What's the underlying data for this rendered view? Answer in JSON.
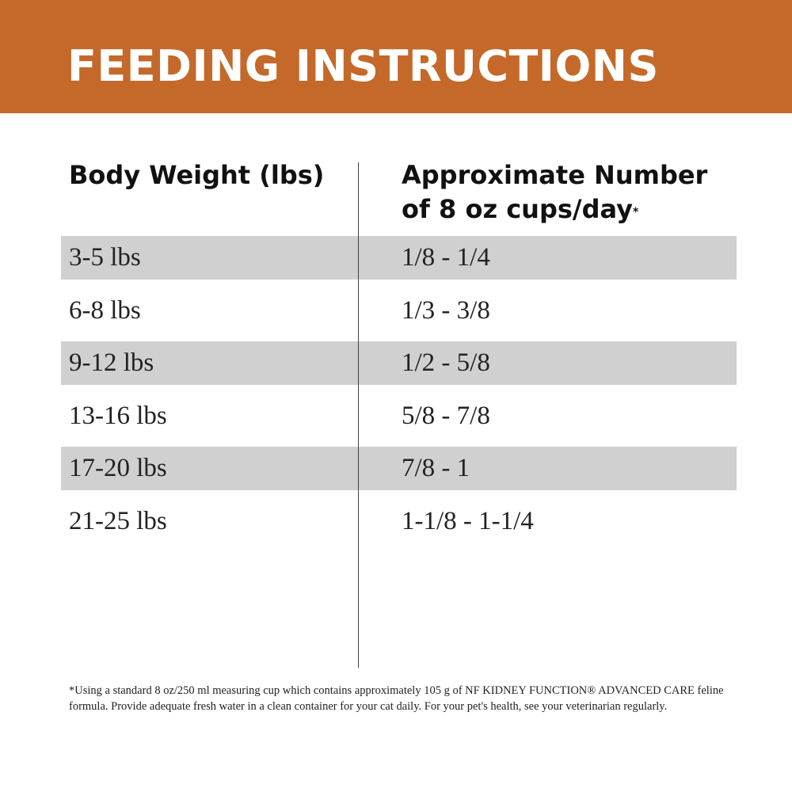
{
  "header": {
    "title": "FEEDING INSTRUCTIONS"
  },
  "table": {
    "columns": [
      "Body Weight (lbs)",
      "Approximate Number of 8 oz cups/day"
    ],
    "column_note": "*",
    "rows": [
      [
        "3-5 lbs",
        "1/8 - 1/4"
      ],
      [
        "6-8 lbs",
        "1/3 - 3/8"
      ],
      [
        "9-12 lbs",
        "1/2 - 5/8"
      ],
      [
        "13-16 lbs",
        "5/8 - 7/8"
      ],
      [
        "17-20 lbs",
        "7/8 - 1"
      ],
      [
        "21-25 lbs",
        "1-1/8 - 1-1/4"
      ]
    ]
  },
  "footnote": "*Using a standard 8 oz/250 ml measuring cup which contains approximately 105 g of NF KIDNEY FUNCTION® ADVANCED CARE feline formula. Provide adequate fresh water in a clean container for your cat daily. For your pet's health, see your veterinarian regularly."
}
